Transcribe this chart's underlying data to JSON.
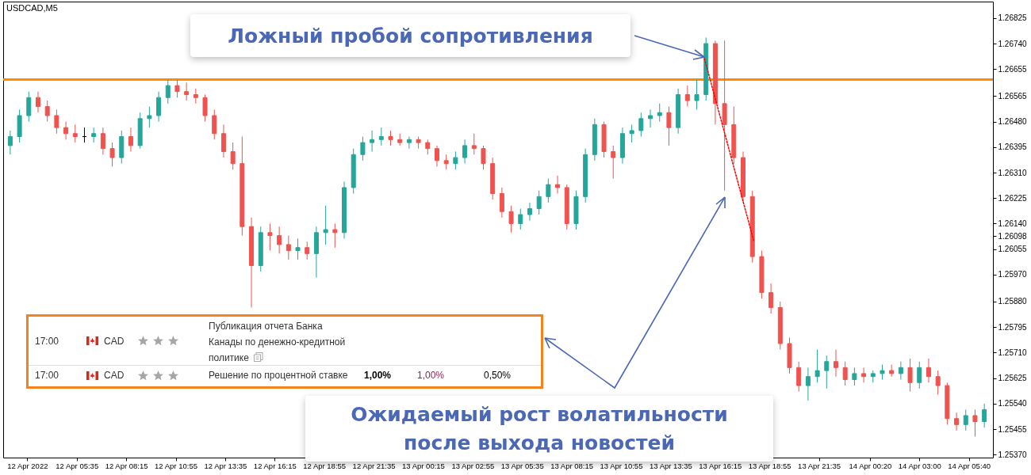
{
  "chart_data": {
    "type": "candlestick",
    "title": "USDCAD,M5",
    "x": [
      "2022-04-12T02:00",
      "2022-04-12T02:30",
      "2022-04-12T03:00",
      "2022-04-12T03:30",
      "2022-04-12T04:00",
      "2022-04-12T04:30",
      "2022-04-12T05:00",
      "2022-04-12T05:30",
      "2022-04-12T06:00",
      "2022-04-12T06:30",
      "2022-04-12T07:00",
      "2022-04-12T07:30",
      "2022-04-12T08:00",
      "2022-04-12T08:30",
      "2022-04-12T09:00",
      "2022-04-12T09:30",
      "2022-04-12T10:00",
      "2022-04-12T10:30",
      "2022-04-12T11:00",
      "2022-04-12T11:30",
      "2022-04-12T12:00",
      "2022-04-12T12:30",
      "2022-04-12T13:00",
      "2022-04-12T13:30",
      "2022-04-12T14:00",
      "2022-04-12T14:30",
      "2022-04-12T15:00",
      "2022-04-12T15:30",
      "2022-04-12T16:00",
      "2022-04-12T16:30",
      "2022-04-12T17:00",
      "2022-04-12T17:30",
      "2022-04-12T18:00",
      "2022-04-12T18:30",
      "2022-04-12T19:00",
      "2022-04-12T19:30",
      "2022-04-12T20:00",
      "2022-04-12T20:30",
      "2022-04-12T21:00",
      "2022-04-12T21:30",
      "2022-04-12T22:00",
      "2022-04-12T22:30",
      "2022-04-12T23:00",
      "2022-04-12T23:30",
      "2022-04-13T00:00",
      "2022-04-13T00:30",
      "2022-04-13T01:00",
      "2022-04-13T01:30",
      "2022-04-13T02:00",
      "2022-04-13T02:30",
      "2022-04-13T03:00",
      "2022-04-13T03:30",
      "2022-04-13T04:00",
      "2022-04-13T04:30",
      "2022-04-13T05:00",
      "2022-04-13T05:30",
      "2022-04-13T06:00",
      "2022-04-13T06:30",
      "2022-04-13T07:00",
      "2022-04-13T07:30",
      "2022-04-13T08:00",
      "2022-04-13T08:30",
      "2022-04-13T09:00",
      "2022-04-13T09:30",
      "2022-04-13T10:00",
      "2022-04-13T10:30",
      "2022-04-13T11:00",
      "2022-04-13T11:30",
      "2022-04-13T12:00",
      "2022-04-13T12:30",
      "2022-04-13T13:00",
      "2022-04-13T13:30",
      "2022-04-13T14:00",
      "2022-04-13T14:30",
      "2022-04-13T15:00",
      "2022-04-13T15:30",
      "2022-04-13T16:00",
      "2022-04-13T16:30",
      "2022-04-13T17:00",
      "2022-04-13T17:30",
      "2022-04-13T18:00",
      "2022-04-13T18:30",
      "2022-04-13T19:00",
      "2022-04-13T19:30",
      "2022-04-13T20:00",
      "2022-04-13T20:30",
      "2022-04-13T21:00",
      "2022-04-13T21:30",
      "2022-04-13T22:00",
      "2022-04-13T22:30",
      "2022-04-13T23:00",
      "2022-04-13T23:30",
      "2022-04-14T00:00",
      "2022-04-14T00:30",
      "2022-04-14T01:00",
      "2022-04-14T01:30",
      "2022-04-14T02:00",
      "2022-04-14T02:30",
      "2022-04-14T03:00",
      "2022-04-14T03:30",
      "2022-04-14T04:00",
      "2022-04-14T04:30",
      "2022-04-14T05:00",
      "2022-04-14T05:30",
      "2022-04-14T06:00",
      "2022-04-14T06:30"
    ],
    "ohlc": [
      [
        1.264,
        1.2645,
        1.2637,
        1.2643
      ],
      [
        1.2643,
        1.2652,
        1.2641,
        1.265
      ],
      [
        1.265,
        1.2658,
        1.2648,
        1.2656
      ],
      [
        1.2656,
        1.2658,
        1.2651,
        1.2653
      ],
      [
        1.2653,
        1.2655,
        1.2648,
        1.265
      ],
      [
        1.265,
        1.2652,
        1.2644,
        1.2646
      ],
      [
        1.2646,
        1.2648,
        1.2642,
        1.2644
      ],
      [
        1.2644,
        1.2647,
        1.2641,
        1.2643
      ],
      [
        1.2643,
        1.2646,
        1.2641,
        1.2643
      ],
      [
        1.2643,
        1.2646,
        1.2641,
        1.2644
      ],
      [
        1.2644,
        1.2646,
        1.2637,
        1.2639
      ],
      [
        1.2639,
        1.2641,
        1.2633,
        1.2636
      ],
      [
        1.2636,
        1.2645,
        1.2634,
        1.2643
      ],
      [
        1.2643,
        1.2646,
        1.2638,
        1.264
      ],
      [
        1.264,
        1.2651,
        1.2639,
        1.2649
      ],
      [
        1.2649,
        1.2653,
        1.2646,
        1.265
      ],
      [
        1.265,
        1.2658,
        1.2648,
        1.2656
      ],
      [
        1.2656,
        1.2662,
        1.2654,
        1.266
      ],
      [
        1.266,
        1.2662,
        1.2656,
        1.2658
      ],
      [
        1.2658,
        1.2661,
        1.2655,
        1.2657
      ],
      [
        1.2657,
        1.2659,
        1.2654,
        1.2656
      ],
      [
        1.2656,
        1.2657,
        1.2648,
        1.265
      ],
      [
        1.265,
        1.2652,
        1.2642,
        1.2644
      ],
      [
        1.2644,
        1.2647,
        1.2636,
        1.2638
      ],
      [
        1.2638,
        1.2641,
        1.2632,
        1.2634
      ],
      [
        1.2634,
        1.2643,
        1.261,
        1.2613
      ],
      [
        1.2613,
        1.2616,
        1.2586,
        1.26
      ],
      [
        1.26,
        1.2613,
        1.2598,
        1.2611
      ],
      [
        1.2611,
        1.2614,
        1.2605,
        1.261
      ],
      [
        1.261,
        1.2613,
        1.2604,
        1.2607
      ],
      [
        1.2607,
        1.261,
        1.2602,
        1.2605
      ],
      [
        1.2605,
        1.2609,
        1.2602,
        1.2606
      ],
      [
        1.2606,
        1.2608,
        1.2602,
        1.2604
      ],
      [
        1.2604,
        1.2613,
        1.2596,
        1.2611
      ],
      [
        1.2611,
        1.262,
        1.2607,
        1.2612
      ],
      [
        1.2612,
        1.2614,
        1.2606,
        1.2611
      ],
      [
        1.2611,
        1.2628,
        1.2609,
        1.2626
      ],
      [
        1.2626,
        1.2639,
        1.2624,
        1.2637
      ],
      [
        1.2637,
        1.2643,
        1.2635,
        1.2641
      ],
      [
        1.2641,
        1.2645,
        1.2638,
        1.2642
      ],
      [
        1.2642,
        1.2646,
        1.264,
        1.2643
      ],
      [
        1.2643,
        1.2645,
        1.264,
        1.2642
      ],
      [
        1.2642,
        1.2644,
        1.264,
        1.2641
      ],
      [
        1.2641,
        1.2643,
        1.2639,
        1.2642
      ],
      [
        1.2642,
        1.2643,
        1.2639,
        1.2641
      ],
      [
        1.2641,
        1.2642,
        1.2637,
        1.2639
      ],
      [
        1.2639,
        1.264,
        1.2633,
        1.2635
      ],
      [
        1.2635,
        1.2637,
        1.2632,
        1.2634
      ],
      [
        1.2634,
        1.2638,
        1.2632,
        1.2636
      ],
      [
        1.2636,
        1.2642,
        1.2634,
        1.264
      ],
      [
        1.264,
        1.2644,
        1.2637,
        1.2639
      ],
      [
        1.2639,
        1.264,
        1.2632,
        1.2634
      ],
      [
        1.2634,
        1.2636,
        1.2622,
        1.2624
      ],
      [
        1.2624,
        1.2626,
        1.2616,
        1.2618
      ],
      [
        1.2618,
        1.262,
        1.2611,
        1.2614
      ],
      [
        1.2614,
        1.2619,
        1.2612,
        1.2617
      ],
      [
        1.2617,
        1.2621,
        1.2615,
        1.2619
      ],
      [
        1.2619,
        1.2625,
        1.2617,
        1.2623
      ],
      [
        1.2623,
        1.2629,
        1.2621,
        1.2627
      ],
      [
        1.2627,
        1.263,
        1.2624,
        1.2626
      ],
      [
        1.2626,
        1.2627,
        1.2612,
        1.2614
      ],
      [
        1.2614,
        1.2625,
        1.2612,
        1.2623
      ],
      [
        1.2623,
        1.2639,
        1.2621,
        1.2637
      ],
      [
        1.2637,
        1.2649,
        1.2635,
        1.2647
      ],
      [
        1.2647,
        1.2648,
        1.2636,
        1.2638
      ],
      [
        1.2638,
        1.264,
        1.2629,
        1.2636
      ],
      [
        1.2636,
        1.2646,
        1.2634,
        1.2644
      ],
      [
        1.2644,
        1.2647,
        1.2641,
        1.2645
      ],
      [
        1.2645,
        1.2651,
        1.2643,
        1.2649
      ],
      [
        1.2649,
        1.2652,
        1.2646,
        1.265
      ],
      [
        1.265,
        1.2654,
        1.2648,
        1.2651
      ],
      [
        1.2651,
        1.2653,
        1.264,
        1.2646
      ],
      [
        1.2646,
        1.2659,
        1.2644,
        1.2657
      ],
      [
        1.2657,
        1.266,
        1.2653,
        1.2655
      ],
      [
        1.2655,
        1.2662,
        1.2652,
        1.2657
      ],
      [
        1.2657,
        1.2676,
        1.2655,
        1.2674
      ],
      [
        1.2674,
        1.2675,
        1.2647,
        1.2654
      ],
      [
        1.2654,
        1.2675,
        1.2625,
        1.2647
      ],
      [
        1.2647,
        1.2653,
        1.2634,
        1.2636
      ],
      [
        1.2636,
        1.2638,
        1.2621,
        1.2623
      ],
      [
        1.2623,
        1.2625,
        1.2601,
        1.2603
      ],
      [
        1.2603,
        1.2605,
        1.2589,
        1.2591
      ],
      [
        1.2591,
        1.2594,
        1.2584,
        1.2586
      ],
      [
        1.2586,
        1.2588,
        1.2572,
        1.2574
      ],
      [
        1.2574,
        1.2576,
        1.2564,
        1.2566
      ],
      [
        1.2566,
        1.2568,
        1.2558,
        1.256
      ],
      [
        1.256,
        1.2566,
        1.2555,
        1.2563
      ],
      [
        1.2563,
        1.2572,
        1.2561,
        1.2565
      ],
      [
        1.2565,
        1.257,
        1.2559,
        1.2568
      ],
      [
        1.2568,
        1.2572,
        1.2563,
        1.2566
      ],
      [
        1.2566,
        1.2568,
        1.256,
        1.2562
      ],
      [
        1.2562,
        1.2566,
        1.256,
        1.2564
      ],
      [
        1.2564,
        1.2566,
        1.2561,
        1.2563
      ],
      [
        1.2563,
        1.2565,
        1.2561,
        1.2564
      ],
      [
        1.2564,
        1.2567,
        1.2562,
        1.2565
      ],
      [
        1.2565,
        1.2567,
        1.2563,
        1.2564
      ],
      [
        1.2564,
        1.2568,
        1.2562,
        1.2566
      ],
      [
        1.2566,
        1.2569,
        1.2558,
        1.2561
      ],
      [
        1.2561,
        1.2568,
        1.2559,
        1.2566
      ],
      [
        1.2566,
        1.2569,
        1.2561,
        1.2563
      ],
      [
        1.2563,
        1.2565,
        1.2557,
        1.256
      ],
      [
        1.256,
        1.2561,
        1.2547,
        1.2549
      ],
      [
        1.2549,
        1.2551,
        1.2545,
        1.2547
      ],
      [
        1.2547,
        1.2552,
        1.2545,
        1.255
      ],
      [
        1.255,
        1.2552,
        1.2543,
        1.2548
      ],
      [
        1.2548,
        1.2554,
        1.2546,
        1.2552
      ]
    ],
    "colors": [
      "#26a69a",
      "#26a69a",
      "#26a69a",
      "#ef5350",
      "#ef5350",
      "#ef5350",
      "#ef5350",
      "#ef5350",
      "#000000",
      "#26a69a",
      "#ef5350",
      "#ef5350",
      "#26a69a",
      "#ef5350",
      "#26a69a",
      "#26a69a",
      "#26a69a",
      "#26a69a",
      "#ef5350",
      "#ef5350",
      "#ef5350",
      "#ef5350",
      "#ef5350",
      "#ef5350",
      "#ef5350",
      "#ef5350",
      "#ef5350",
      "#26a69a",
      "#ef5350",
      "#ef5350",
      "#ef5350",
      "#26a69a",
      "#ef5350",
      "#26a69a",
      "#26a69a",
      "#ef5350",
      "#26a69a",
      "#26a69a",
      "#26a69a",
      "#26a69a",
      "#26a69a",
      "#ef5350",
      "#ef5350",
      "#26a69a",
      "#ef5350",
      "#ef5350",
      "#ef5350",
      "#ef5350",
      "#26a69a",
      "#26a69a",
      "#ef5350",
      "#ef5350",
      "#ef5350",
      "#ef5350",
      "#ef5350",
      "#26a69a",
      "#26a69a",
      "#26a69a",
      "#26a69a",
      "#ef5350",
      "#ef5350",
      "#26a69a",
      "#26a69a",
      "#26a69a",
      "#ef5350",
      "#ef5350",
      "#26a69a",
      "#26a69a",
      "#26a69a",
      "#26a69a",
      "#26a69a",
      "#ef5350",
      "#26a69a",
      "#ef5350",
      "#26a69a",
      "#26a69a",
      "#ef5350",
      "#ef5350",
      "#ef5350",
      "#ef5350",
      "#ef5350",
      "#ef5350",
      "#ef5350",
      "#ef5350",
      "#ef5350",
      "#ef5350",
      "#26a69a",
      "#26a69a",
      "#26a69a",
      "#ef5350",
      "#ef5350",
      "#26a69a",
      "#ef5350",
      "#26a69a",
      "#26a69a",
      "#ef5350",
      "#26a69a",
      "#ef5350",
      "#26a69a",
      "#ef5350",
      "#ef5350",
      "#ef5350",
      "#ef5350",
      "#26a69a",
      "#ef5350",
      "#26a69a"
    ],
    "series": [
      {
        "type": "line",
        "x": [
          "2022-04-13T15:25",
          "2022-04-13T18:05"
        ],
        "values": [
          1.2669,
          1.2608
        ],
        "color": "#ff0000",
        "line_style": "dotted"
      }
    ],
    "ref_lines": [
      {
        "axis": "y",
        "value": 1.2662,
        "color": "#ff8c00"
      }
    ],
    "xlim": [
      "2022-04-12T01:50",
      "2022-04-14T06:45"
    ],
    "xticks": [
      {
        "value": "2022-04-12T02:55",
        "label": "12 Apr 2022"
      },
      {
        "value": "2022-04-12T05:35",
        "label": "12 Apr 05:35"
      },
      {
        "value": "2022-04-12T08:15",
        "label": "12 Apr 08:15"
      },
      {
        "value": "2022-04-12T10:55",
        "label": "12 Apr 10:55"
      },
      {
        "value": "2022-04-12T13:35",
        "label": "12 Apr 13:35"
      },
      {
        "value": "2022-04-12T16:15",
        "label": "12 Apr 16:15"
      },
      {
        "value": "2022-04-12T18:55",
        "label": "12 Apr 18:55"
      },
      {
        "value": "2022-04-12T21:35",
        "label": "12 Apr 21:35"
      },
      {
        "value": "2022-04-13T00:15",
        "label": "13 Apr 00:15"
      },
      {
        "value": "2022-04-13T02:55",
        "label": "13 Apr 02:55"
      },
      {
        "value": "2022-04-13T05:35",
        "label": "13 Apr 05:35"
      },
      {
        "value": "2022-04-13T08:15",
        "label": "13 Apr 08:15"
      },
      {
        "value": "2022-04-13T10:55",
        "label": "13 Apr 10:55"
      },
      {
        "value": "2022-04-13T13:35",
        "label": "13 Apr 13:35"
      },
      {
        "value": "2022-04-13T16:15",
        "label": "13 Apr 16:15"
      },
      {
        "value": "2022-04-13T18:55",
        "label": "13 Apr 18:55"
      },
      {
        "value": "2022-04-13T21:35",
        "label": "13 Apr 21:35"
      },
      {
        "value": "2022-04-14T00:20",
        "label": "14 Apr 00:20"
      },
      {
        "value": "2022-04-14T03:00",
        "label": "14 Apr 03:00"
      },
      {
        "value": "2022-04-14T05:40",
        "label": "14 Apr 05:40"
      }
    ],
    "ylim": [
      1.2536,
      1.2688
    ],
    "yticks": [
      1.26825,
      {
        "value": 1.2674,
        "label": "1.26740"
      },
      1.26655,
      1.26565,
      {
        "value": 1.2648,
        "label": "1.26480"
      },
      1.26395,
      {
        "value": 1.2631,
        "label": "1.26310"
      },
      1.26225,
      {
        "value": 1.2614,
        "label": "1.26140"
      },
      1.26098,
      1.26055,
      {
        "value": 1.2597,
        "label": "1.25970"
      },
      {
        "value": 1.2588,
        "label": "1.25880"
      },
      1.25795,
      {
        "value": 1.2571,
        "label": "1.25710"
      },
      1.25625,
      {
        "value": 1.2554,
        "label": "1.25540"
      },
      1.25455,
      {
        "value": 1.2537,
        "label": "1.25370"
      }
    ],
    "annotations": [
      "Ложный пробой сопротивления",
      "Ожидаемый рост волатильности после выхода новостей",
      "17:00",
      "CAD",
      "Публикация отчета Банка Канады по денежно-кредитной политике",
      "17:00",
      "CAD",
      "Решение по процентной ставке",
      "1,00%",
      "1,00%",
      "0,50%"
    ]
  }
}
